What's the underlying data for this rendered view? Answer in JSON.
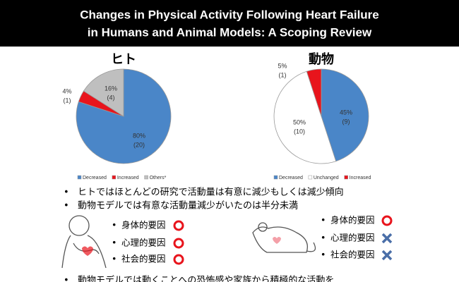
{
  "title_lines": [
    "Changes in Physical Activity Following Heart Failure",
    "in Humans and Animal Models: A Scoping Review"
  ],
  "chart_data": [
    {
      "type": "pie",
      "title": "ヒト",
      "categories": [
        "Decreased",
        "Increased",
        "Others*"
      ],
      "values": [
        80,
        4,
        16
      ],
      "value_labels": [
        "80%",
        "4%",
        "16%"
      ],
      "counts": [
        20,
        1,
        4
      ],
      "count_labels": [
        "(20)",
        "(1)",
        "(4)"
      ],
      "colors": [
        "#4a86c8",
        "#e8141c",
        "#bfbfbf"
      ]
    },
    {
      "type": "pie",
      "title": "動物",
      "categories": [
        "Decreased",
        "Unchanged",
        "Increased"
      ],
      "values": [
        45,
        50,
        5
      ],
      "value_labels": [
        "45%",
        "50%",
        "5%"
      ],
      "counts": [
        9,
        10,
        1
      ],
      "count_labels": [
        "(9)",
        "(10)",
        "(1)"
      ],
      "colors": [
        "#4a86c8",
        "#ffffff",
        "#e8141c"
      ]
    }
  ],
  "bullets": [
    "ヒトではほとんどの研究で活動量は有意に減少もしくは減少傾向",
    "動物モデルでは有意な活動量減少がいたのは半分未満",
    "動物モデルでは動くことへの恐怖感や家族から積極的な活動を"
  ],
  "human_factors": [
    "身体的要因",
    "心理的要因",
    "社会的要因"
  ],
  "animal_factors": [
    "身体的要因",
    "心理的要因",
    "社会的要因"
  ]
}
